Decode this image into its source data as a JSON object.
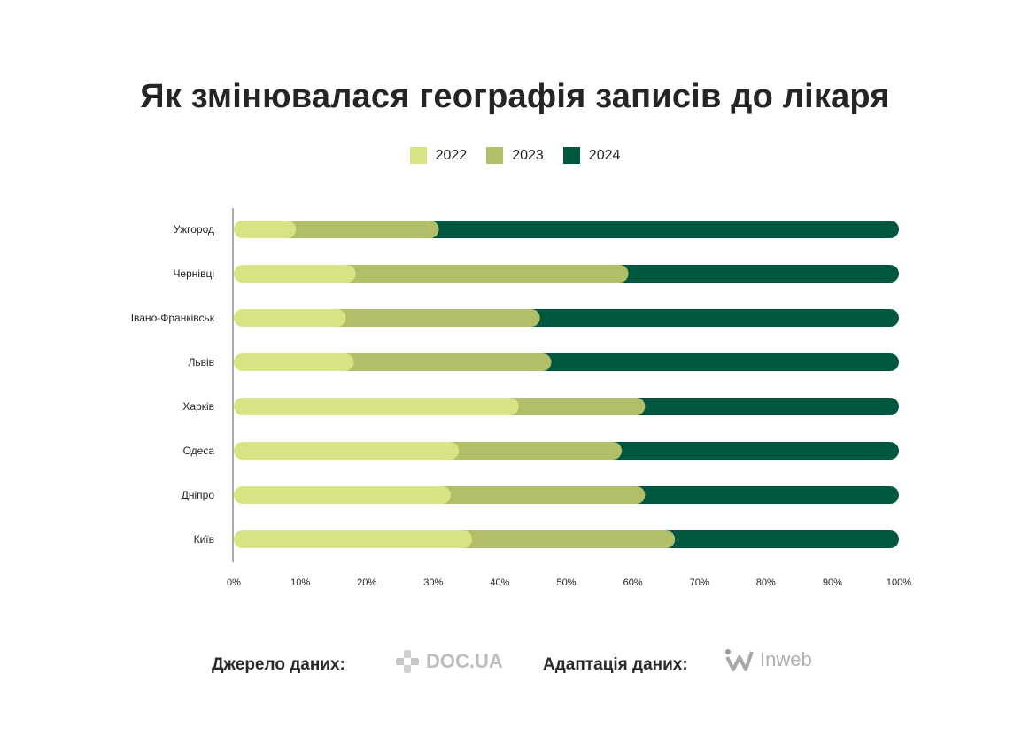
{
  "title": "Як змінювалася географія записів до лікаря",
  "chart_data": {
    "type": "bar",
    "orientation": "horizontal",
    "stacked": true,
    "normalized": "percent",
    "categories": [
      "Ужгород",
      "Чернівці",
      "Івано-Франківськ",
      "Львів",
      "Харків",
      "Одеса",
      "Дніпро",
      "Київ"
    ],
    "series": [
      {
        "name": "2022",
        "color": "#d8e484",
        "values": [
          8,
          17,
          15.5,
          16.7,
          41.5,
          32.5,
          31.3,
          34.5
        ]
      },
      {
        "name": "2023",
        "color": "#b3bf68",
        "values": [
          21.5,
          41,
          29.2,
          29.7,
          19,
          24.5,
          29.2,
          30.5
        ]
      },
      {
        "name": "2024",
        "color": "#005740",
        "values": [
          70.5,
          42,
          55.3,
          53.6,
          39.5,
          43,
          39.5,
          35
        ]
      }
    ],
    "xlim": [
      0,
      100
    ],
    "x_tick_labels": [
      "0%",
      "10%",
      "20%",
      "30%",
      "40%",
      "50%",
      "60%",
      "70%",
      "80%",
      "90%",
      "100%"
    ],
    "grid": false,
    "legend_position": "top-center"
  },
  "footer": {
    "source_label": "Джерело даних:",
    "source_logo": "DOC.UA",
    "adaptation_label": "Адаптація даних:",
    "adaptation_logo": "Inweb"
  }
}
